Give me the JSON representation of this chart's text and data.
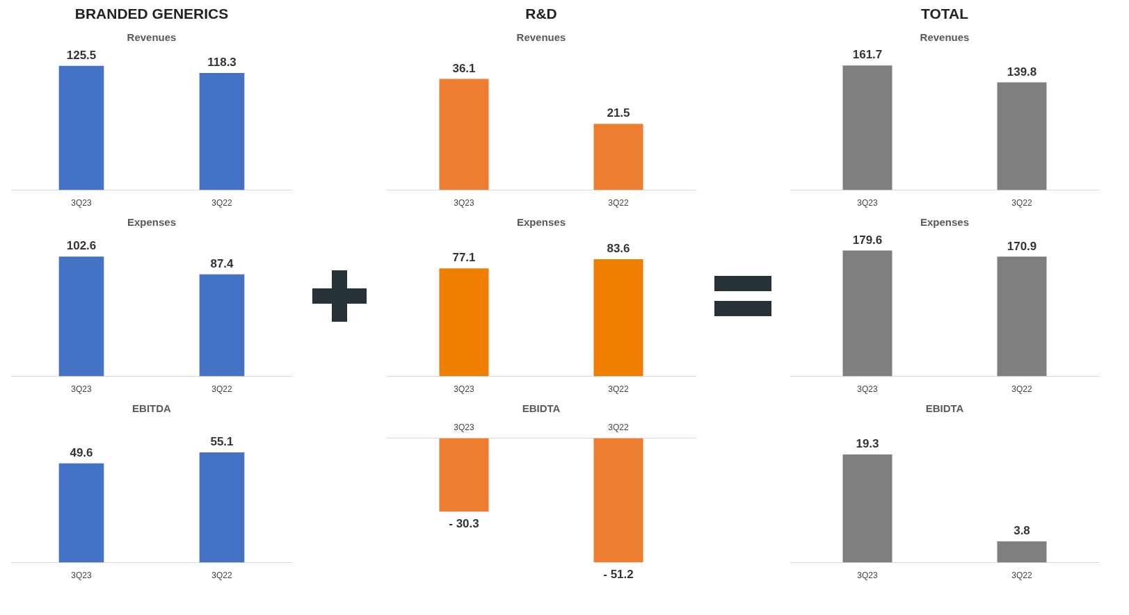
{
  "chart_data": [
    {
      "type": "bar",
      "title": "BRANDED GENERICS",
      "subtitle": "Revenues",
      "categories": [
        "3Q23",
        "3Q22"
      ],
      "values": [
        125.5,
        118.3
      ],
      "colors": [
        "#4472c4",
        "#4472c4"
      ],
      "data_labels": true
    },
    {
      "type": "bar",
      "title": "Expenses",
      "categories": [
        "3Q23",
        "3Q22"
      ],
      "values": [
        102.6,
        87.4
      ],
      "colors": [
        "#4472c4",
        "#4472c4"
      ],
      "data_labels": true
    },
    {
      "type": "bar",
      "title": "EBITDA",
      "categories": [
        "3Q23",
        "3Q22"
      ],
      "values": [
        49.6,
        55.1
      ],
      "colors": [
        "#4472c4",
        "#4472c4"
      ],
      "data_labels": true
    },
    {
      "type": "bar",
      "title": "R&D",
      "subtitle": "Revenues",
      "categories": [
        "3Q23",
        "3Q22"
      ],
      "values": [
        36.1,
        21.5
      ],
      "colors": [
        "#ed7d31",
        "#ed7d31"
      ],
      "data_labels": true
    },
    {
      "type": "bar",
      "title": "Expenses",
      "categories": [
        "3Q23",
        "3Q22"
      ],
      "values": [
        77.1,
        83.6
      ],
      "colors": [
        "#ef7d00",
        "#ef7d00"
      ],
      "data_labels": true
    },
    {
      "type": "bar",
      "title": "EBIDTA",
      "categories": [
        "3Q23",
        "3Q22"
      ],
      "values": [
        -30.3,
        -51.2
      ],
      "value_labels": [
        "- 30.3",
        "- 51.2"
      ],
      "colors": [
        "#ed7d31",
        "#ed7d31"
      ]
    },
    {
      "type": "bar",
      "title": "TOTAL",
      "subtitle": "Revenues",
      "categories": [
        "3Q23",
        "3Q22"
      ],
      "values": [
        161.7,
        139.8
      ],
      "colors": [
        "#7f7f7f",
        "#7f7f7f"
      ],
      "data_labels": true
    },
    {
      "type": "bar",
      "title": "Expenses",
      "categories": [
        "3Q23",
        "3Q22"
      ],
      "values": [
        179.6,
        170.9
      ],
      "colors": [
        "#7f7f7f",
        "#7f7f7f"
      ],
      "data_labels": true
    },
    {
      "type": "bar",
      "title": "EBIDTA",
      "categories": [
        "3Q23",
        "3Q22"
      ],
      "values": [
        19.3,
        3.8
      ],
      "colors": [
        "#7f7f7f",
        "#7f7f7f"
      ],
      "data_labels": true
    }
  ]
}
